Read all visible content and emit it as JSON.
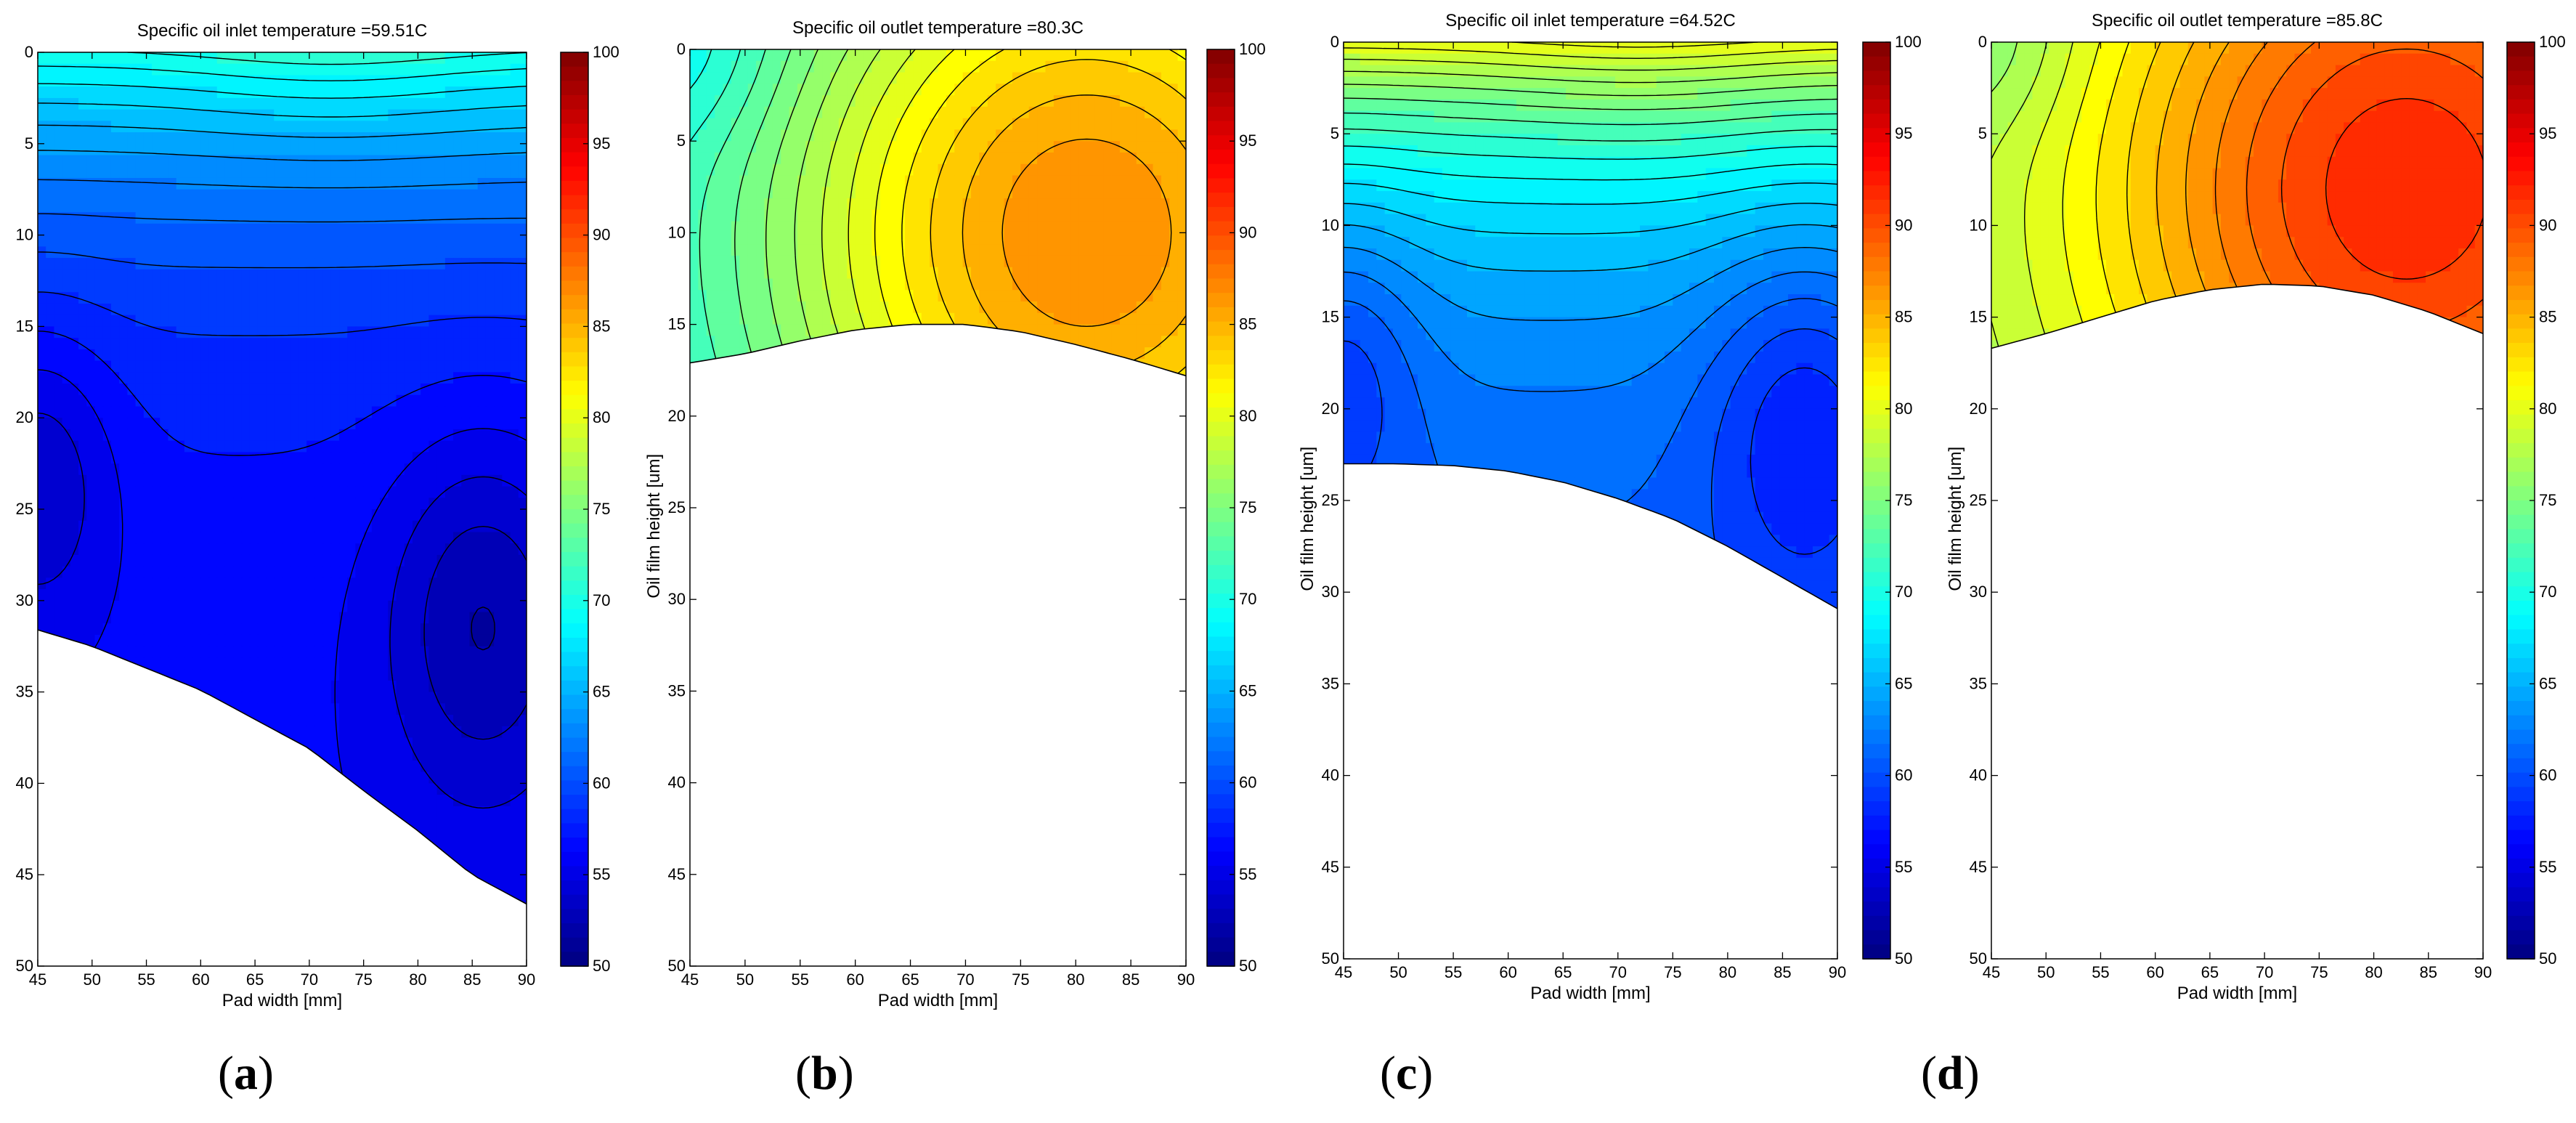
{
  "chart_data": [
    {
      "type": "contour",
      "panel_label": "a",
      "title": "Specific oil inlet temperature =59.51C",
      "xlabel": "Pad width [mm]",
      "ylabel": "",
      "xlim": [
        45,
        90
      ],
      "ylim": [
        0,
        50
      ],
      "x_ticks": [
        "45",
        "50",
        "55",
        "60",
        "65",
        "70",
        "75",
        "80",
        "85",
        "90"
      ],
      "y_ticks": [
        "0",
        "5",
        "10",
        "15",
        "20",
        "25",
        "30",
        "35",
        "40",
        "45",
        "50"
      ],
      "colorbar": {
        "min": 50,
        "max": 100,
        "ticks": [
          "50",
          "55",
          "60",
          "65",
          "70",
          "75",
          "80",
          "85",
          "90",
          "95",
          "100"
        ]
      },
      "field": {
        "top_temp": 70,
        "bottom_temp": 56,
        "hot_x": 72,
        "hot_y": 0,
        "cold_left_y": 23,
        "cold_right_x": 86,
        "cold_right_y": 31
      },
      "boundary": [
        [
          45,
          31.6
        ],
        [
          50,
          32.5
        ],
        [
          55,
          33.7
        ],
        [
          60,
          34.9
        ],
        [
          65,
          36.5
        ],
        [
          70,
          38.1
        ],
        [
          75,
          40.4
        ],
        [
          80,
          42.6
        ],
        [
          85,
          45.0
        ],
        [
          90,
          46.6
        ]
      ]
    },
    {
      "type": "contour",
      "panel_label": "b",
      "title": "Specific oil outlet temperature =80.3C",
      "xlabel": "Pad width [mm]",
      "ylabel": "Oil film height [um]",
      "xlim": [
        45,
        90
      ],
      "ylim": [
        0,
        50
      ],
      "x_ticks": [
        "45",
        "50",
        "55",
        "60",
        "65",
        "70",
        "75",
        "80",
        "85",
        "90"
      ],
      "y_ticks": [
        "0",
        "5",
        "10",
        "15",
        "20",
        "25",
        "30",
        "35",
        "40",
        "45",
        "50"
      ],
      "colorbar": {
        "min": 50,
        "max": 100,
        "ticks": [
          "50",
          "55",
          "60",
          "65",
          "70",
          "75",
          "80",
          "85",
          "90",
          "95",
          "100"
        ]
      },
      "field": {
        "left_temp": 68,
        "peak_temp": 87,
        "peak_x": 81,
        "peak_y": 10
      },
      "boundary": [
        [
          45,
          17.1
        ],
        [
          50,
          16.6
        ],
        [
          55,
          15.9
        ],
        [
          60,
          15.3
        ],
        [
          65,
          15.0
        ],
        [
          70,
          15.0
        ],
        [
          75,
          15.4
        ],
        [
          80,
          16.1
        ],
        [
          85,
          16.9
        ],
        [
          90,
          17.8
        ]
      ]
    },
    {
      "type": "contour",
      "panel_label": "c",
      "title": "Specific oil inlet temperature =64.52C",
      "xlabel": "Pad width [mm]",
      "ylabel": "Oil film height [um]",
      "xlim": [
        45,
        90
      ],
      "ylim": [
        0,
        50
      ],
      "x_ticks": [
        "45",
        "50",
        "55",
        "60",
        "65",
        "70",
        "75",
        "80",
        "85",
        "90"
      ],
      "y_ticks": [
        "0",
        "5",
        "10",
        "15",
        "20",
        "25",
        "30",
        "35",
        "40",
        "45",
        "50"
      ],
      "colorbar": {
        "min": 50,
        "max": 100,
        "ticks": [
          "50",
          "55",
          "60",
          "65",
          "70",
          "75",
          "80",
          "85",
          "90",
          "95",
          "100"
        ]
      },
      "field": {
        "top_temp": 80,
        "bottom_temp": 60,
        "hot_x": 72,
        "hot_y": 0,
        "cold_left_y": 17,
        "cold_right_x": 87,
        "cold_right_y": 20
      },
      "boundary": [
        [
          45,
          23.0
        ],
        [
          50,
          23.0
        ],
        [
          55,
          23.1
        ],
        [
          60,
          23.4
        ],
        [
          65,
          24.0
        ],
        [
          70,
          24.9
        ],
        [
          75,
          26.0
        ],
        [
          80,
          27.5
        ],
        [
          85,
          29.2
        ],
        [
          90,
          30.9
        ]
      ]
    },
    {
      "type": "contour",
      "panel_label": "d",
      "title": "Specific oil outlet temperature =85.8C",
      "xlabel": "Pad width [mm]",
      "ylabel": "Oil film height [um]",
      "xlim": [
        45,
        90
      ],
      "ylim": [
        0,
        50
      ],
      "x_ticks": [
        "45",
        "50",
        "55",
        "60",
        "65",
        "70",
        "75",
        "80",
        "85",
        "90"
      ],
      "y_ticks": [
        "0",
        "5",
        "10",
        "15",
        "20",
        "25",
        "30",
        "35",
        "40",
        "45",
        "50"
      ],
      "colorbar": {
        "min": 50,
        "max": 100,
        "ticks": [
          "50",
          "55",
          "60",
          "65",
          "70",
          "75",
          "80",
          "85",
          "90",
          "95",
          "100"
        ]
      },
      "field": {
        "left_temp": 75,
        "peak_temp": 92,
        "peak_x": 83,
        "peak_y": 8
      },
      "boundary": [
        [
          45,
          16.7
        ],
        [
          50,
          15.9
        ],
        [
          55,
          15.0
        ],
        [
          60,
          14.1
        ],
        [
          65,
          13.5
        ],
        [
          70,
          13.2
        ],
        [
          75,
          13.3
        ],
        [
          80,
          13.8
        ],
        [
          85,
          14.7
        ],
        [
          90,
          15.9
        ]
      ]
    }
  ]
}
